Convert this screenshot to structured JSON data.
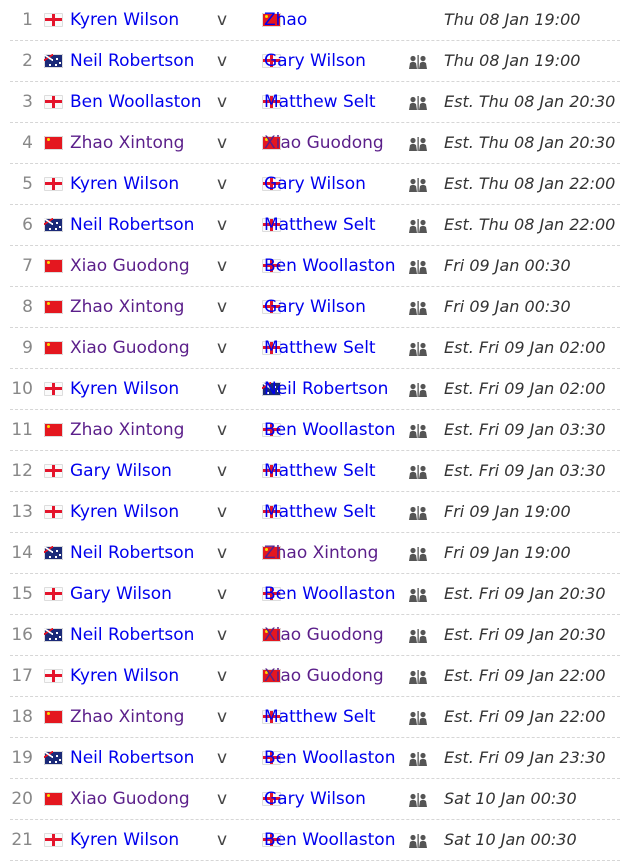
{
  "colors": {
    "link": "#0000ee",
    "visited_link": "#5b1f8a"
  },
  "vs_label": "v",
  "head_to_head_icon": "head-to-head-icon",
  "matches": [
    {
      "num": "1",
      "p1": "Kyren Wilson",
      "f1": "eng",
      "p1_visited": false,
      "p2": "Zhao",
      "f2": "chn",
      "p2_visited": false,
      "h2h": false,
      "time": "Thu 08 Jan 19:00"
    },
    {
      "num": "2",
      "p1": "Neil Robertson",
      "f1": "aus",
      "p1_visited": false,
      "p2": "Gary Wilson",
      "f2": "eng",
      "p2_visited": false,
      "h2h": true,
      "time": "Thu 08 Jan 19:00"
    },
    {
      "num": "3",
      "p1": "Ben Woollaston",
      "f1": "eng",
      "p1_visited": false,
      "p2": "Matthew Selt",
      "f2": "eng",
      "p2_visited": false,
      "h2h": true,
      "time": "Est. Thu 08 Jan 20:30"
    },
    {
      "num": "4",
      "p1": "Zhao Xintong",
      "f1": "chn",
      "p1_visited": true,
      "p2": "Xiao Guodong",
      "f2": "chn",
      "p2_visited": true,
      "h2h": true,
      "time": "Est. Thu 08 Jan 20:30"
    },
    {
      "num": "5",
      "p1": "Kyren Wilson",
      "f1": "eng",
      "p1_visited": false,
      "p2": "Gary Wilson",
      "f2": "eng",
      "p2_visited": false,
      "h2h": true,
      "time": "Est. Thu 08 Jan 22:00"
    },
    {
      "num": "6",
      "p1": "Neil Robertson",
      "f1": "aus",
      "p1_visited": false,
      "p2": "Matthew Selt",
      "f2": "eng",
      "p2_visited": false,
      "h2h": true,
      "time": "Est. Thu 08 Jan 22:00"
    },
    {
      "num": "7",
      "p1": "Xiao Guodong",
      "f1": "chn",
      "p1_visited": true,
      "p2": "Ben Woollaston",
      "f2": "eng",
      "p2_visited": false,
      "h2h": true,
      "time": "Fri 09 Jan 00:30"
    },
    {
      "num": "8",
      "p1": "Zhao Xintong",
      "f1": "chn",
      "p1_visited": true,
      "p2": "Gary Wilson",
      "f2": "eng",
      "p2_visited": false,
      "h2h": true,
      "time": "Fri 09 Jan 00:30"
    },
    {
      "num": "9",
      "p1": "Xiao Guodong",
      "f1": "chn",
      "p1_visited": true,
      "p2": "Matthew Selt",
      "f2": "eng",
      "p2_visited": false,
      "h2h": true,
      "time": "Est. Fri 09 Jan 02:00"
    },
    {
      "num": "10",
      "p1": "Kyren Wilson",
      "f1": "eng",
      "p1_visited": false,
      "p2": "Neil Robertson",
      "f2": "aus",
      "p2_visited": false,
      "h2h": true,
      "time": "Est. Fri 09 Jan 02:00"
    },
    {
      "num": "11",
      "p1": "Zhao Xintong",
      "f1": "chn",
      "p1_visited": true,
      "p2": "Ben Woollaston",
      "f2": "eng",
      "p2_visited": false,
      "h2h": true,
      "time": "Est. Fri 09 Jan 03:30"
    },
    {
      "num": "12",
      "p1": "Gary Wilson",
      "f1": "eng",
      "p1_visited": false,
      "p2": "Matthew Selt",
      "f2": "eng",
      "p2_visited": false,
      "h2h": true,
      "time": "Est. Fri 09 Jan 03:30"
    },
    {
      "num": "13",
      "p1": "Kyren Wilson",
      "f1": "eng",
      "p1_visited": false,
      "p2": "Matthew Selt",
      "f2": "eng",
      "p2_visited": false,
      "h2h": true,
      "time": "Fri 09 Jan 19:00"
    },
    {
      "num": "14",
      "p1": "Neil Robertson",
      "f1": "aus",
      "p1_visited": false,
      "p2": "Zhao Xintong",
      "f2": "chn",
      "p2_visited": true,
      "h2h": true,
      "time": "Fri 09 Jan 19:00"
    },
    {
      "num": "15",
      "p1": "Gary Wilson",
      "f1": "eng",
      "p1_visited": false,
      "p2": "Ben Woollaston",
      "f2": "eng",
      "p2_visited": false,
      "h2h": true,
      "time": "Est. Fri 09 Jan 20:30"
    },
    {
      "num": "16",
      "p1": "Neil Robertson",
      "f1": "aus",
      "p1_visited": false,
      "p2": "Xiao Guodong",
      "f2": "chn",
      "p2_visited": true,
      "h2h": true,
      "time": "Est. Fri 09 Jan 20:30"
    },
    {
      "num": "17",
      "p1": "Kyren Wilson",
      "f1": "eng",
      "p1_visited": false,
      "p2": "Xiao Guodong",
      "f2": "chn",
      "p2_visited": true,
      "h2h": true,
      "time": "Est. Fri 09 Jan 22:00"
    },
    {
      "num": "18",
      "p1": "Zhao Xintong",
      "f1": "chn",
      "p1_visited": true,
      "p2": "Matthew Selt",
      "f2": "eng",
      "p2_visited": false,
      "h2h": true,
      "time": "Est. Fri 09 Jan 22:00"
    },
    {
      "num": "19",
      "p1": "Neil Robertson",
      "f1": "aus",
      "p1_visited": false,
      "p2": "Ben Woollaston",
      "f2": "eng",
      "p2_visited": false,
      "h2h": true,
      "time": "Est. Fri 09 Jan 23:30"
    },
    {
      "num": "20",
      "p1": "Xiao Guodong",
      "f1": "chn",
      "p1_visited": true,
      "p2": "Gary Wilson",
      "f2": "eng",
      "p2_visited": false,
      "h2h": true,
      "time": "Sat 10 Jan 00:30"
    },
    {
      "num": "21",
      "p1": "Kyren Wilson",
      "f1": "eng",
      "p1_visited": false,
      "p2": "Ben Woollaston",
      "f2": "eng",
      "p2_visited": false,
      "h2h": true,
      "time": "Sat 10 Jan 00:30"
    }
  ]
}
